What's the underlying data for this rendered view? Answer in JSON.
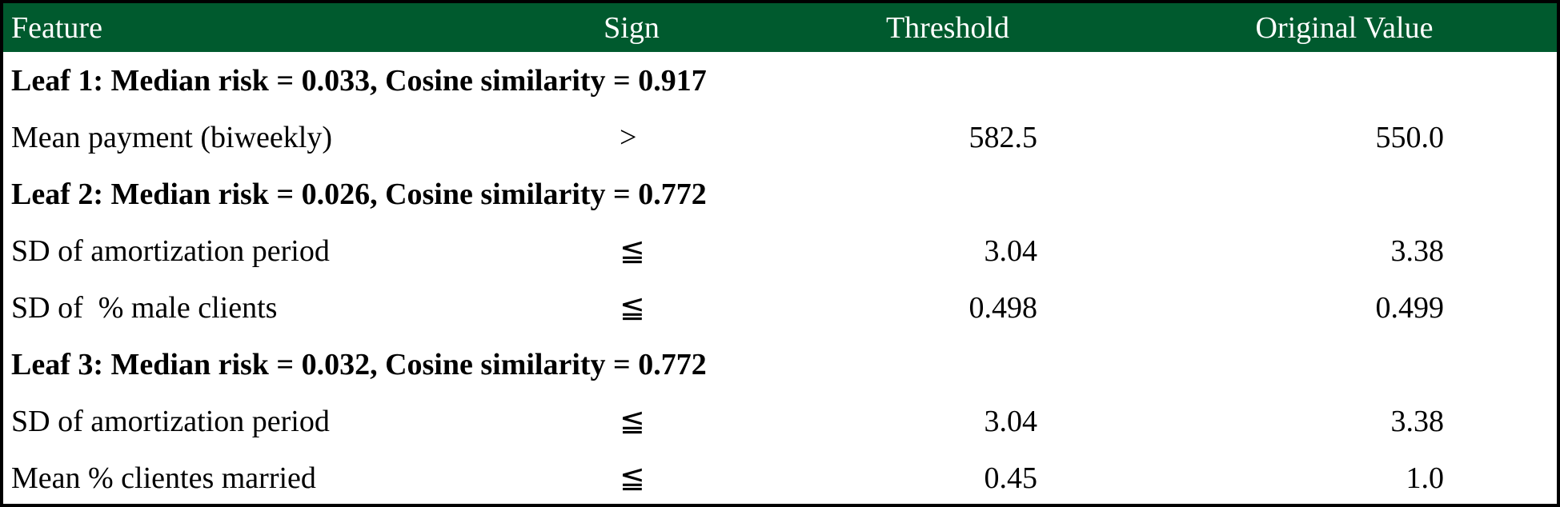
{
  "header": {
    "feature": "Feature",
    "sign": "Sign",
    "threshold": "Threshold",
    "original_value": "Original Value"
  },
  "colors": {
    "header_bg": "#005a2e",
    "header_text": "#ffffff"
  },
  "groups": [
    {
      "title": "Leaf 1: Median risk = 0.033, Cosine similarity = 0.917",
      "rows": [
        {
          "feature": "Mean payment (biweekly)",
          "sign": ">",
          "threshold": "582.5",
          "original": "550.0"
        }
      ]
    },
    {
      "title": "Leaf 2: Median risk = 0.026, Cosine similarity = 0.772",
      "rows": [
        {
          "feature": "SD of amortization period",
          "sign": "≦",
          "threshold": "3.04",
          "original": "3.38"
        },
        {
          "feature": "SD of  % male clients",
          "sign": "≦",
          "threshold": "0.498",
          "original": "0.499"
        }
      ]
    },
    {
      "title": "Leaf 3: Median risk = 0.032, Cosine similarity = 0.772",
      "rows": [
        {
          "feature": "SD of amortization period",
          "sign": "≦",
          "threshold": "3.04",
          "original": "3.38"
        },
        {
          "feature": "Mean % clientes married",
          "sign": "≦",
          "threshold": "0.45",
          "original": "1.0"
        }
      ]
    }
  ]
}
